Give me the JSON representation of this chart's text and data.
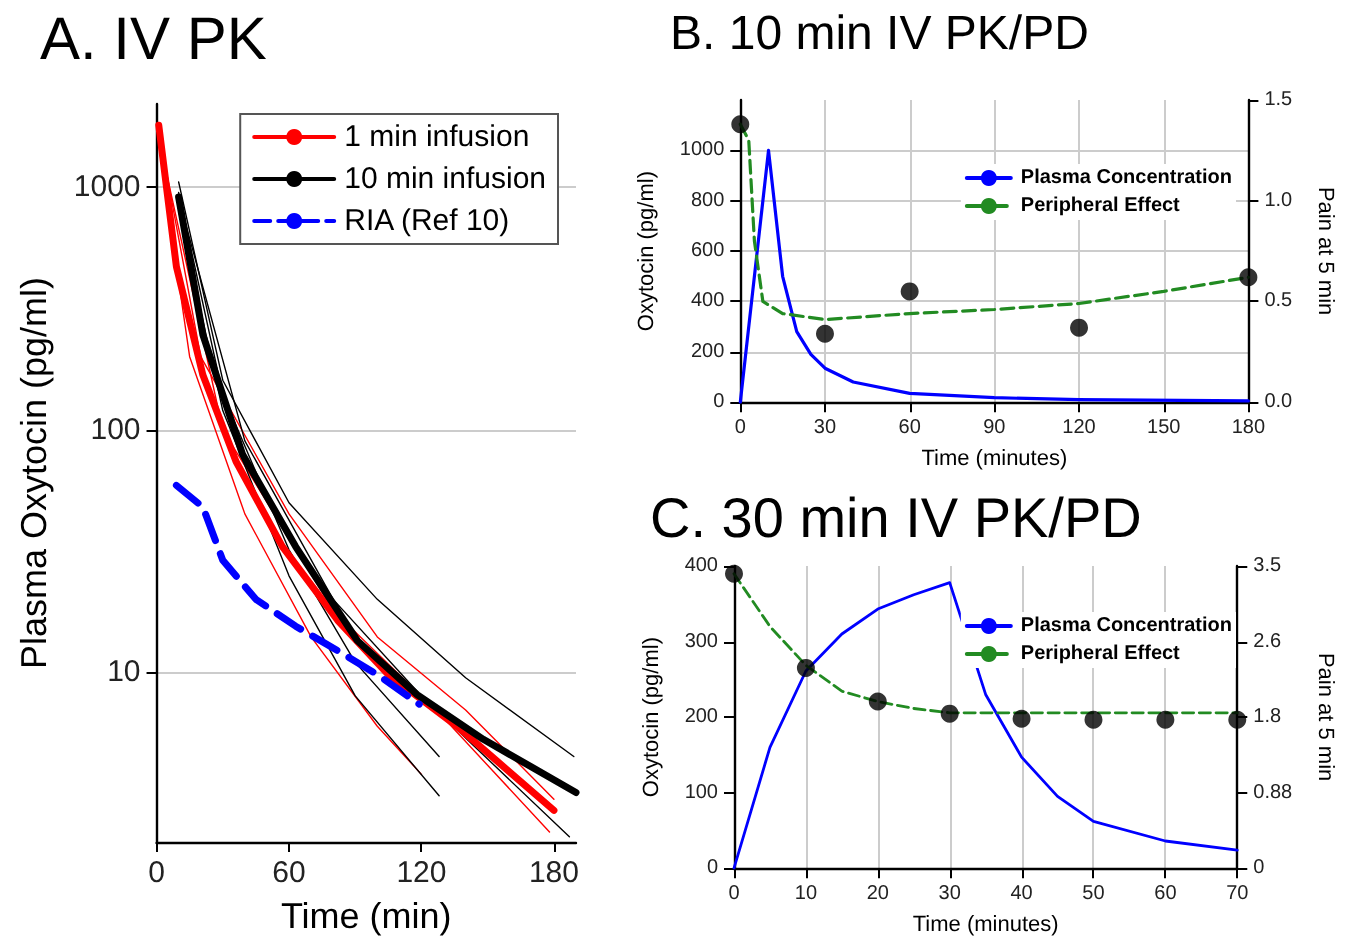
{
  "chart_data": [
    {
      "type": "line",
      "title": "A. IV PK",
      "xlabel": "Time (min)",
      "ylabel": "Plasma Oxytocin (pg/ml)",
      "log": "y",
      "grid": "y",
      "legend": "top right",
      "marker": "none",
      "xlim": [
        0,
        190
      ],
      "xticks": [
        0,
        60,
        120,
        180
      ],
      "ylim": [
        2,
        2200
      ],
      "yticks": [
        10,
        100,
        1000
      ],
      "series": [
        {
          "name": "1 min infusion",
          "color": "#ff0000",
          "line_style": "solid",
          "x": [
            1,
            9,
            21,
            36,
            57,
            82,
            105,
            136,
            180
          ],
          "values": [
            1800,
            470,
            168,
            74,
            33,
            16.4,
            9.8,
            6,
            2.7
          ]
        },
        {
          "name": "10 min infusion",
          "color": "#000000",
          "line_style": "solid",
          "x": [
            10,
            21,
            39,
            63,
            91,
            118,
            148,
            190
          ],
          "values": [
            910,
            246,
            79,
            33,
            13.5,
            8.1,
            5.3,
            3.2
          ]
        },
        {
          "name": "RIA (Ref 10)",
          "color": "#0000ff",
          "line_style": "dashed",
          "x": [
            9,
            21,
            30,
            45,
            63,
            82,
            100,
            119
          ],
          "values": [
            59,
            48,
            29,
            20,
            15.5,
            12.3,
            9.8,
            7.4
          ]
        },
        {
          "color": "#ff0000",
          "line_style": "solid",
          "x": [
            1,
            15,
            40,
            70,
            100,
            120
          ],
          "values": [
            1500,
            200,
            45,
            14,
            6,
            3.8
          ]
        },
        {
          "color": "#ff0000",
          "line_style": "solid",
          "x": [
            1,
            20,
            60,
            100,
            140,
            180
          ],
          "values": [
            1700,
            200,
            45,
            14,
            7,
            3
          ]
        },
        {
          "color": "#ff0000",
          "line_style": "solid",
          "x": [
            1,
            30,
            80,
            130,
            178
          ],
          "values": [
            1600,
            100,
            18,
            6.5,
            2.2
          ]
        },
        {
          "color": "#000000",
          "line_style": "solid",
          "x": [
            10,
            30,
            60,
            100,
            140,
            189
          ],
          "values": [
            1050,
            160,
            50,
            20,
            9.5,
            4.5
          ]
        },
        {
          "color": "#000000",
          "line_style": "solid",
          "x": [
            10,
            30,
            60,
            90,
            128
          ],
          "values": [
            800,
            120,
            25,
            8,
            3.1
          ]
        },
        {
          "color": "#000000",
          "line_style": "solid",
          "x": [
            10,
            30,
            60,
            90,
            128
          ],
          "values": [
            950,
            140,
            32,
            11,
            4.5
          ]
        },
        {
          "color": "#000000",
          "line_style": "solid",
          "x": [
            10,
            40,
            80,
            120,
            187
          ],
          "values": [
            900,
            90,
            20,
            8,
            2.1
          ]
        }
      ]
    },
    {
      "type": "line",
      "title": "B. 10 min IV PK/PD",
      "xlabel": "Time (minutes)",
      "ylabel": "Oxytocin (pg/ml)",
      "y2label": "Pain at 5 min",
      "grid": true,
      "legend": "top right",
      "marker": "none",
      "xlim": [
        0,
        180
      ],
      "xticks": [
        0,
        30,
        60,
        90,
        120,
        150,
        180
      ],
      "ylim": [
        0,
        1200
      ],
      "yticks": [
        0,
        200,
        400,
        600,
        800,
        1000
      ],
      "y2lim": [
        0,
        1.5
      ],
      "y2ticks": [
        {
          "value": 0,
          "label": "0.0"
        },
        0.5,
        {
          "value": 1,
          "label": "1.0"
        },
        1.5
      ],
      "series": [
        {
          "name": "Plasma Concentration",
          "color": "#0000ff",
          "line_style": "solid",
          "x": [
            0,
            10,
            12,
            15,
            20,
            25,
            30,
            40,
            60,
            90,
            120,
            180
          ],
          "values": [
            0,
            1000,
            800,
            500,
            280,
            190,
            135,
            80,
            35,
            18,
            10,
            5
          ]
        },
        {
          "name": "Peripheral Effect",
          "color": "#228b22",
          "line_style": "dashed",
          "axis": "y2",
          "x": [
            0,
            3,
            5,
            8,
            15,
            30,
            60,
            90,
            120,
            150,
            180
          ],
          "values": [
            1.38,
            1.3,
            0.8,
            0.5,
            0.44,
            0.41,
            0.44,
            0.46,
            0.49,
            0.55,
            0.62
          ]
        },
        {
          "type": "scatter",
          "marker": "circle",
          "color": "#000000",
          "axis": "y2",
          "x": [
            0,
            30,
            60,
            120,
            180
          ],
          "values": [
            1.38,
            0.34,
            0.55,
            0.37,
            0.62
          ]
        }
      ]
    },
    {
      "type": "line",
      "title": "C. 30 min IV PK/PD",
      "xlabel": "Time (minutes)",
      "ylabel": "Oxytocin (pg/ml)",
      "y2label": "Pain at 5 min",
      "grid": "x",
      "legend": "top right",
      "marker": "none",
      "xlim": [
        0,
        70
      ],
      "xticks": [
        0,
        10,
        20,
        30,
        40,
        50,
        60,
        70
      ],
      "ylim": [
        0,
        400
      ],
      "yticks": [
        0,
        100,
        200,
        300,
        400
      ],
      "y2lim": [
        0,
        3.5
      ],
      "y2ticks": [
        0,
        {
          "value": 0.875,
          "label": "0.88"
        },
        {
          "value": 1.75,
          "label": "1.8"
        },
        {
          "value": 2.625,
          "label": "2.6"
        },
        3.5
      ],
      "series": [
        {
          "name": "Plasma Concentration",
          "color": "#0000ff",
          "line_style": "solid",
          "x": [
            0,
            5,
            10,
            15,
            20,
            25,
            30,
            35,
            40,
            45,
            50,
            60,
            70
          ],
          "values": [
            0,
            160,
            261,
            310,
            343,
            362,
            378,
            230,
            147,
            95,
            62,
            36,
            24
          ]
        },
        {
          "name": "Peripheral Effect",
          "color": "#228b22",
          "line_style": "dashed",
          "axis": "y2",
          "x": [
            0,
            5,
            10,
            15,
            20,
            25,
            30,
            40,
            50,
            60,
            70
          ],
          "values": [
            3.41,
            2.8,
            2.35,
            2.05,
            1.93,
            1.85,
            1.8,
            1.8,
            1.8,
            1.8,
            1.8
          ]
        },
        {
          "type": "scatter",
          "marker": "circle",
          "color": "#000000",
          "axis": "y2",
          "x": [
            0,
            10,
            20,
            30,
            40,
            50,
            60,
            70
          ],
          "values": [
            3.41,
            2.32,
            1.93,
            1.79,
            1.73,
            1.72,
            1.72,
            1.72
          ]
        }
      ]
    }
  ]
}
